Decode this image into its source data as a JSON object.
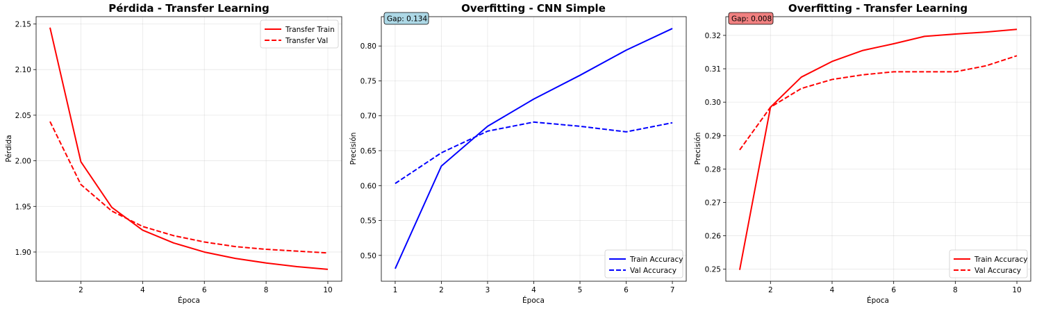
{
  "chart_data": [
    {
      "type": "line",
      "title": "Pérdida - Transfer Learning",
      "xlabel": "Época",
      "ylabel": "Pérdida",
      "xlim": [
        0.55,
        10.45
      ],
      "ylim": [
        1.868,
        2.158
      ],
      "xticks": [
        2,
        4,
        6,
        8,
        10
      ],
      "yticks": [
        1.9,
        1.95,
        2.0,
        2.05,
        2.1,
        2.15
      ],
      "ytick_decimals": 2,
      "grid": true,
      "legend": "top-right",
      "x": [
        1,
        2,
        3,
        4,
        5,
        6,
        7,
        8,
        9,
        10
      ],
      "series": [
        {
          "name": "Transfer Train",
          "color": "#ff0000",
          "dash": "solid",
          "values": [
            2.146,
            1.999,
            1.949,
            1.924,
            1.91,
            1.9,
            1.893,
            1.888,
            1.884,
            1.881
          ]
        },
        {
          "name": "Transfer Val",
          "color": "#ff0000",
          "dash": "dashed",
          "values": [
            2.043,
            1.974,
            1.945,
            1.928,
            1.918,
            1.911,
            1.906,
            1.903,
            1.901,
            1.899
          ]
        }
      ]
    },
    {
      "type": "line",
      "title": "Overfitting - CNN Simple",
      "xlabel": "Época",
      "ylabel": "Precisión",
      "xlim": [
        0.7,
        7.3
      ],
      "ylim": [
        0.463,
        0.842
      ],
      "xticks": [
        1,
        2,
        3,
        4,
        5,
        6,
        7
      ],
      "yticks": [
        0.5,
        0.55,
        0.6,
        0.65,
        0.7,
        0.75,
        0.8
      ],
      "ytick_decimals": 2,
      "grid": true,
      "legend": "bottom-right",
      "annotation": {
        "text": "Gap: 0.134",
        "color": "#add8e6"
      },
      "x": [
        1,
        2,
        3,
        4,
        5,
        6,
        7
      ],
      "series": [
        {
          "name": "Train Accuracy",
          "color": "#0000ff",
          "dash": "solid",
          "values": [
            0.481,
            0.628,
            0.685,
            0.724,
            0.758,
            0.794,
            0.825
          ]
        },
        {
          "name": "Val Accuracy",
          "color": "#0000ff",
          "dash": "dashed",
          "values": [
            0.603,
            0.647,
            0.678,
            0.691,
            0.685,
            0.677,
            0.69
          ]
        }
      ]
    },
    {
      "type": "line",
      "title": "Overfitting - Transfer Learning",
      "xlabel": "Época",
      "ylabel": "Precisión",
      "xlim": [
        0.55,
        10.45
      ],
      "ylim": [
        0.2464,
        0.3256
      ],
      "xticks": [
        2,
        4,
        6,
        8,
        10
      ],
      "yticks": [
        0.25,
        0.26,
        0.27,
        0.28,
        0.29,
        0.3,
        0.31,
        0.32
      ],
      "ytick_decimals": 2,
      "grid": true,
      "legend": "bottom-right",
      "annotation": {
        "text": "Gap: 0.008",
        "color": "#f08080"
      },
      "x": [
        1,
        2,
        3,
        4,
        5,
        6,
        7,
        8,
        9,
        10
      ],
      "series": [
        {
          "name": "Train Accuracy",
          "color": "#ff0000",
          "dash": "solid",
          "values": [
            0.2498,
            0.2985,
            0.3075,
            0.3122,
            0.3155,
            0.3175,
            0.3197,
            0.3204,
            0.321,
            0.3218
          ]
        },
        {
          "name": "Val Accuracy",
          "color": "#ff0000",
          "dash": "dashed",
          "values": [
            0.2857,
            0.2985,
            0.3041,
            0.3068,
            0.3082,
            0.3091,
            0.3091,
            0.3091,
            0.3109,
            0.3139
          ]
        }
      ]
    }
  ]
}
